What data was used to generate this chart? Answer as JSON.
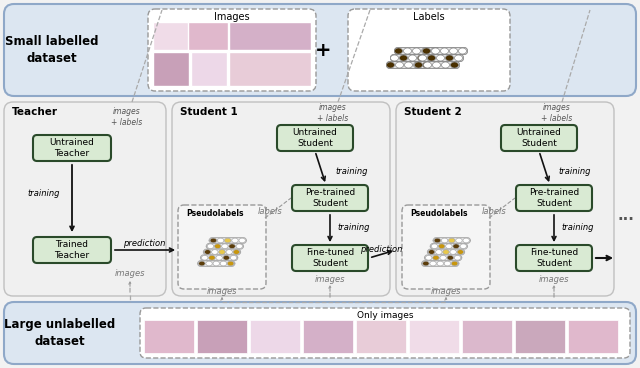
{
  "bg_color": "#f2f2f2",
  "top_panel_color": "#dce6f1",
  "top_panel_border": "#8fa8c8",
  "bottom_panel_color": "#dce6f1",
  "bottom_panel_border": "#8fa8c8",
  "mid_panel_color": "#ebebeb",
  "mid_panel_border": "#b0b0b0",
  "node_fill": "#d9ead3",
  "node_border": "#4a7a4a",
  "node_border_dark": "#2a4a2a",
  "dashed_box_fill": "#f5f5f5",
  "dashed_box_border": "#999999",
  "top_text": "Small labelled\ndataset",
  "bottom_text": "Large unlabelled\ndataset",
  "images_label": "Images",
  "labels_label": "Labels",
  "only_images_label": "Only images",
  "teacher_label": "Teacher",
  "student1_label": "Student 1",
  "student2_label": "Student 2",
  "untrained_teacher": "Untrained\nTeacher",
  "trained_teacher": "Trained\nTeacher",
  "untrained_student": "Untrained\nStudent",
  "pretrained_student": "Pre-trained\nStudent",
  "finetuned_student": "Fine-tuned\nStudent",
  "pseudolabels": "Pseudolabels",
  "training_label": "training",
  "prediction_label": "prediction",
  "images_label2": "images",
  "labels_arrow_label": "labels",
  "images_labels_label": "images\n+ labels",
  "dot_dark1": "#5c3d0a",
  "dot_dark2": "#8b6010",
  "dot_mid": "#c8960c",
  "dot_light": "#e8c84a",
  "dot_white": "#ffffff",
  "ellipse_stroke": "#aaaaaa",
  "img_colors": [
    "#e0b8cc",
    "#c8a0b8",
    "#edd8e8",
    "#d4b0c8",
    "#e8ccd8",
    "#f0dce8",
    "#dbb8cc",
    "#caa8bc"
  ],
  "label_dark": "#4a3000",
  "label_mid": "#7a5800",
  "pill_stroke": "#888888"
}
